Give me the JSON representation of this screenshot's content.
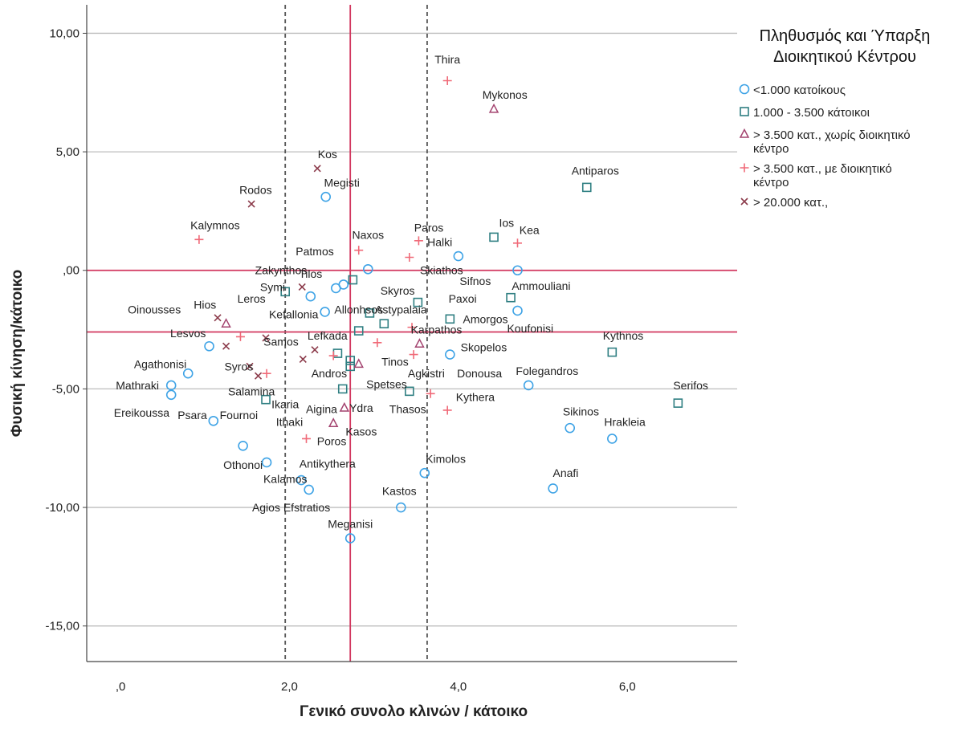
{
  "chart_data": {
    "type": "scatter",
    "xlabel": "Γενικό συνολο κλινών / κάτοικο",
    "ylabel": "Φυσική κίνηση/κάτοικο",
    "xlim": [
      -0.4,
      7.3
    ],
    "ylim": [
      -16.5,
      11.2
    ],
    "x_ticks": [
      {
        "value": 0,
        "label": ",0"
      },
      {
        "value": 2,
        "label": "2,0"
      },
      {
        "value": 4,
        "label": "4,0"
      },
      {
        "value": 6,
        "label": "6,0"
      }
    ],
    "y_ticks": [
      {
        "value": 10,
        "label": "10,00"
      },
      {
        "value": 5,
        "label": "5,00"
      },
      {
        "value": 0,
        "label": ",00"
      },
      {
        "value": -5,
        "label": "-5,00"
      },
      {
        "value": -10,
        "label": "-10,00"
      },
      {
        "value": -15,
        "label": "-15,00"
      }
    ],
    "grid": "horizontal",
    "reference_lines": {
      "vertical": [
        {
          "x": 1.95,
          "style": "dashed",
          "color": "#555555"
        },
        {
          "x": 2.72,
          "style": "solid",
          "color": "#d2385f"
        },
        {
          "x": 3.63,
          "style": "dashed",
          "color": "#555555"
        }
      ],
      "horizontal": [
        {
          "y": 0.0,
          "style": "solid",
          "color": "#d2385f"
        },
        {
          "y": -2.6,
          "style": "solid",
          "color": "#d2385f"
        }
      ]
    },
    "legend": {
      "title_lines": [
        "Πληθυσμός και Ύπαρξη",
        "Διοικητικού Κέντρου"
      ],
      "placement": "top-right",
      "entries": [
        {
          "key": "circle",
          "label_lines": [
            "<1.000 κατοίκους"
          ],
          "color": "#3ea3e6"
        },
        {
          "key": "square",
          "label_lines": [
            "1.000 - 3.500 κάτοικοι"
          ],
          "color": "#2f7f82"
        },
        {
          "key": "triangle",
          "label_lines": [
            "> 3.500 κατ., χωρίς διοικητικό",
            "κέντρο"
          ],
          "color": "#a3436f"
        },
        {
          "key": "plus",
          "label_lines": [
            "> 3.500 κατ., με διοικητικό",
            "κέντρο"
          ],
          "color": "#f06a78"
        },
        {
          "key": "cross",
          "label_lines": [
            "> 20.000 κατ.,"
          ],
          "color": "#8b3a4a"
        }
      ]
    },
    "points": [
      {
        "x": 3.87,
        "y": 8.0,
        "marker": "plus",
        "label": "Thira",
        "lx": 3.87,
        "ly": 8.9
      },
      {
        "x": 4.42,
        "y": 6.8,
        "marker": "triangle",
        "label": "Mykonos",
        "lx": 4.55,
        "ly": 7.4
      },
      {
        "x": 2.33,
        "y": 4.3,
        "marker": "cross",
        "label": "Kos",
        "lx": 2.45,
        "ly": 4.9
      },
      {
        "x": 5.52,
        "y": 3.5,
        "marker": "square",
        "label": "Antiparos",
        "lx": 5.62,
        "ly": 4.2
      },
      {
        "x": 2.43,
        "y": 3.1,
        "marker": "circle",
        "label": "Megisti",
        "lx": 2.62,
        "ly": 3.7
      },
      {
        "x": 1.55,
        "y": 2.8,
        "marker": "cross",
        "label": "Rodos",
        "lx": 1.6,
        "ly": 3.4
      },
      {
        "x": 0.93,
        "y": 1.3,
        "marker": "plus",
        "label": "Kalymnos",
        "lx": 1.12,
        "ly": 1.9
      },
      {
        "x": 4.42,
        "y": 1.4,
        "marker": "square",
        "label": "Ios",
        "lx": 4.57,
        "ly": 2.0
      },
      {
        "x": 4.7,
        "y": 1.15,
        "marker": "plus",
        "label": "Kea",
        "lx": 4.84,
        "ly": 1.7
      },
      {
        "x": 3.53,
        "y": 1.25,
        "marker": "plus",
        "label": "Paros",
        "lx": 3.65,
        "ly": 1.8
      },
      {
        "x": 2.82,
        "y": 0.85,
        "marker": "plus",
        "label": "Naxos",
        "lx": 2.93,
        "ly": 1.5
      },
      {
        "x": 3.42,
        "y": 0.55,
        "marker": "plus",
        "label": "Patmos",
        "lx": 2.3,
        "ly": 0.8
      },
      {
        "x": 4.0,
        "y": 0.6,
        "marker": "circle",
        "label": "Halki",
        "lx": 3.78,
        "ly": 1.2
      },
      {
        "x": 2.93,
        "y": 0.05,
        "marker": "circle",
        "label": "",
        "lx": 0,
        "ly": 0
      },
      {
        "x": 4.7,
        "y": 0.0,
        "marker": "circle",
        "label": "",
        "lx": 0,
        "ly": 0
      },
      {
        "x": 2.75,
        "y": -0.4,
        "marker": "square",
        "label": "Zakynthos",
        "lx": 1.9,
        "ly": 0.0
      },
      {
        "x": 2.64,
        "y": -0.6,
        "marker": "circle",
        "label": "Tilos",
        "lx": 2.25,
        "ly": -0.15
      },
      {
        "x": 2.55,
        "y": -0.75,
        "marker": "circle",
        "label": "",
        "lx": 0,
        "ly": 0
      },
      {
        "x": 2.15,
        "y": -0.7,
        "marker": "cross",
        "label": "",
        "lx": 0,
        "ly": 0
      },
      {
        "x": 1.95,
        "y": -0.9,
        "marker": "square",
        "label": "Symi",
        "lx": 1.8,
        "ly": -0.7
      },
      {
        "x": 2.25,
        "y": -1.1,
        "marker": "circle",
        "label": "",
        "lx": 0,
        "ly": 0
      },
      {
        "x": 3.8,
        "y": 0.0,
        "marker": "none",
        "label": "Skiathos",
        "lx": 3.8,
        "ly": 0.0
      },
      {
        "x": 4.6,
        "y": -0.45,
        "marker": "none",
        "label": "Sifnos",
        "lx": 4.2,
        "ly": -0.45
      },
      {
        "x": 4.62,
        "y": -1.15,
        "marker": "square",
        "label": "Ammouliani",
        "lx": 4.98,
        "ly": -0.65
      },
      {
        "x": 3.52,
        "y": -1.35,
        "marker": "square",
        "label": "Skyros",
        "lx": 3.28,
        "ly": -0.85
      },
      {
        "x": 4.7,
        "y": -1.7,
        "marker": "circle",
        "label": "Paxoi",
        "lx": 4.05,
        "ly": -1.2
      },
      {
        "x": 0.0,
        "y": 0.0,
        "marker": "none",
        "label": "Oinousses",
        "lx": 0.4,
        "ly": -1.65
      },
      {
        "x": 1.15,
        "y": -2.0,
        "marker": "cross",
        "label": "Hios",
        "lx": 1.0,
        "ly": -1.45
      },
      {
        "x": 1.25,
        "y": -2.25,
        "marker": "triangle",
        "label": "Leros",
        "lx": 1.55,
        "ly": -1.2
      },
      {
        "x": 0.0,
        "y": 0.0,
        "marker": "none",
        "label": "Kefallonia",
        "lx": 2.05,
        "ly": -1.85
      },
      {
        "x": 2.42,
        "y": -1.75,
        "marker": "circle",
        "label": "Allonhsos",
        "lx": 2.82,
        "ly": -1.65
      },
      {
        "x": 2.95,
        "y": -1.8,
        "marker": "square",
        "label": "",
        "lx": 0,
        "ly": 0
      },
      {
        "x": 0.0,
        "y": 0.0,
        "marker": "none",
        "label": "Astypalaia",
        "lx": 3.32,
        "ly": -1.65
      },
      {
        "x": 3.12,
        "y": -2.25,
        "marker": "square",
        "label": "",
        "lx": 0,
        "ly": 0
      },
      {
        "x": 3.9,
        "y": -2.05,
        "marker": "square",
        "label": "Amorgos",
        "lx": 4.32,
        "ly": -2.05
      },
      {
        "x": 3.45,
        "y": -2.4,
        "marker": "plus",
        "label": "",
        "lx": 0,
        "ly": 0
      },
      {
        "x": 2.82,
        "y": -2.55,
        "marker": "square",
        "label": "",
        "lx": 0,
        "ly": 0
      },
      {
        "x": 0.0,
        "y": 0.0,
        "marker": "none",
        "label": "Koufonisi",
        "lx": 4.85,
        "ly": -2.45
      },
      {
        "x": 0.0,
        "y": 0.0,
        "marker": "none",
        "label": "Karpathos",
        "lx": 3.74,
        "ly": -2.5
      },
      {
        "x": 5.82,
        "y": -3.45,
        "marker": "square",
        "label": "Kythnos",
        "lx": 5.95,
        "ly": -2.75
      },
      {
        "x": 0.0,
        "y": 0.0,
        "marker": "none",
        "label": "Lesvos",
        "lx": 0.8,
        "ly": -2.65
      },
      {
        "x": 1.42,
        "y": -2.8,
        "marker": "plus",
        "label": "",
        "lx": 0,
        "ly": 0
      },
      {
        "x": 1.72,
        "y": -2.85,
        "marker": "cross",
        "label": "",
        "lx": 0,
        "ly": 0
      },
      {
        "x": 0.0,
        "y": 0.0,
        "marker": "none",
        "label": "Lefkada",
        "lx": 2.45,
        "ly": -2.75
      },
      {
        "x": 1.05,
        "y": -3.2,
        "marker": "circle",
        "label": "",
        "lx": 0,
        "ly": 0
      },
      {
        "x": 1.25,
        "y": -3.2,
        "marker": "cross",
        "label": "",
        "lx": 0,
        "ly": 0
      },
      {
        "x": 0.0,
        "y": 0.0,
        "marker": "none",
        "label": "Samos",
        "lx": 1.9,
        "ly": -3.0
      },
      {
        "x": 2.3,
        "y": -3.35,
        "marker": "cross",
        "label": "",
        "lx": 0,
        "ly": 0
      },
      {
        "x": 2.57,
        "y": -3.5,
        "marker": "square",
        "label": "",
        "lx": 0,
        "ly": 0
      },
      {
        "x": 2.52,
        "y": -3.6,
        "marker": "plus",
        "label": "",
        "lx": 0,
        "ly": 0
      },
      {
        "x": 3.04,
        "y": -3.05,
        "marker": "plus",
        "label": "",
        "lx": 0,
        "ly": 0
      },
      {
        "x": 3.54,
        "y": -3.1,
        "marker": "triangle",
        "label": "",
        "lx": 0,
        "ly": 0
      },
      {
        "x": 3.47,
        "y": -3.55,
        "marker": "plus",
        "label": "",
        "lx": 0,
        "ly": 0
      },
      {
        "x": 3.9,
        "y": -3.55,
        "marker": "circle",
        "label": "Skopelos",
        "lx": 4.3,
        "ly": -3.25
      },
      {
        "x": 0.0,
        "y": 0.0,
        "marker": "none",
        "label": "Tinos",
        "lx": 3.25,
        "ly": -3.85
      },
      {
        "x": 2.16,
        "y": -3.75,
        "marker": "cross",
        "label": "",
        "lx": 0,
        "ly": 0
      },
      {
        "x": 2.72,
        "y": -3.8,
        "marker": "square",
        "label": "",
        "lx": 0,
        "ly": 0
      },
      {
        "x": 2.72,
        "y": -4.05,
        "marker": "square",
        "label": "",
        "lx": 0,
        "ly": 0
      },
      {
        "x": 2.82,
        "y": -3.95,
        "marker": "triangle",
        "label": "",
        "lx": 0,
        "ly": 0
      },
      {
        "x": 0.8,
        "y": -4.35,
        "marker": "circle",
        "label": "Agathonisi",
        "lx": 0.47,
        "ly": -3.95
      },
      {
        "x": 1.53,
        "y": -4.05,
        "marker": "cross",
        "label": "Syros",
        "lx": 1.4,
        "ly": -4.05
      },
      {
        "x": 1.63,
        "y": -4.45,
        "marker": "cross",
        "label": "",
        "lx": 0,
        "ly": 0
      },
      {
        "x": 1.73,
        "y": -4.35,
        "marker": "plus",
        "label": "",
        "lx": 0,
        "ly": 0
      },
      {
        "x": 0.0,
        "y": 0.0,
        "marker": "none",
        "label": "Andros",
        "lx": 2.47,
        "ly": -4.35
      },
      {
        "x": 0.0,
        "y": 0.0,
        "marker": "none",
        "label": "Agkistri",
        "lx": 3.62,
        "ly": -4.35
      },
      {
        "x": 0.0,
        "y": 0.0,
        "marker": "none",
        "label": "Donousa",
        "lx": 4.25,
        "ly": -4.35
      },
      {
        "x": 4.83,
        "y": -4.85,
        "marker": "circle",
        "label": "Folegandros",
        "lx": 5.05,
        "ly": -4.25
      },
      {
        "x": 0.6,
        "y": -4.85,
        "marker": "circle",
        "label": "Mathraki",
        "lx": 0.2,
        "ly": -4.85
      },
      {
        "x": 0.6,
        "y": -5.25,
        "marker": "circle",
        "label": "",
        "lx": 0,
        "ly": 0
      },
      {
        "x": 0.0,
        "y": 0.0,
        "marker": "none",
        "label": "Salamina",
        "lx": 1.55,
        "ly": -5.1
      },
      {
        "x": 2.63,
        "y": -5.0,
        "marker": "square",
        "label": "",
        "lx": 0,
        "ly": 0
      },
      {
        "x": 0.0,
        "y": 0.0,
        "marker": "none",
        "label": "Spetses",
        "lx": 3.15,
        "ly": -4.8
      },
      {
        "x": 3.42,
        "y": -5.1,
        "marker": "square",
        "label": "",
        "lx": 0,
        "ly": 0
      },
      {
        "x": 3.67,
        "y": -5.2,
        "marker": "plus",
        "label": "",
        "lx": 0,
        "ly": 0
      },
      {
        "x": 6.6,
        "y": -5.6,
        "marker": "square",
        "label": "Serifos",
        "lx": 6.75,
        "ly": -4.85
      },
      {
        "x": 1.72,
        "y": -5.45,
        "marker": "square",
        "label": "Ikaria",
        "lx": 1.95,
        "ly": -5.65
      },
      {
        "x": 0.0,
        "y": 0.0,
        "marker": "none",
        "label": "Kythera",
        "lx": 4.2,
        "ly": -5.35
      },
      {
        "x": 0.0,
        "y": 0.0,
        "marker": "none",
        "label": "Thasos",
        "lx": 3.4,
        "ly": -5.85
      },
      {
        "x": 3.87,
        "y": -5.9,
        "marker": "plus",
        "label": "",
        "lx": 0,
        "ly": 0
      },
      {
        "x": 0.0,
        "y": 0.0,
        "marker": "none",
        "label": "Ereikoussa",
        "lx": 0.25,
        "ly": -6.0
      },
      {
        "x": 0.0,
        "y": 0.0,
        "marker": "none",
        "label": "Psara",
        "lx": 0.85,
        "ly": -6.1
      },
      {
        "x": 1.1,
        "y": -6.35,
        "marker": "circle",
        "label": "Fournoi",
        "lx": 1.4,
        "ly": -6.1
      },
      {
        "x": 0.0,
        "y": 0.0,
        "marker": "none",
        "label": "Aigina",
        "lx": 2.38,
        "ly": -5.85
      },
      {
        "x": 2.65,
        "y": -5.8,
        "marker": "triangle",
        "label": "Ydra",
        "lx": 2.85,
        "ly": -5.8
      },
      {
        "x": 0.0,
        "y": 0.0,
        "marker": "none",
        "label": "Ithaki",
        "lx": 2.0,
        "ly": -6.4
      },
      {
        "x": 2.52,
        "y": -6.45,
        "marker": "triangle",
        "label": "Kasos",
        "lx": 2.85,
        "ly": -6.8
      },
      {
        "x": 5.32,
        "y": -6.65,
        "marker": "circle",
        "label": "Sikinos",
        "lx": 5.45,
        "ly": -5.95
      },
      {
        "x": 5.82,
        "y": -7.1,
        "marker": "circle",
        "label": "Hrakleia",
        "lx": 5.97,
        "ly": -6.4
      },
      {
        "x": 2.2,
        "y": -7.1,
        "marker": "plus",
        "label": "Poros",
        "lx": 2.5,
        "ly": -7.2
      },
      {
        "x": 1.45,
        "y": -7.4,
        "marker": "circle",
        "label": "",
        "lx": 0,
        "ly": 0
      },
      {
        "x": 3.6,
        "y": -8.55,
        "marker": "circle",
        "label": "Kimolos",
        "lx": 3.85,
        "ly": -7.95
      },
      {
        "x": 1.73,
        "y": -8.1,
        "marker": "circle",
        "label": "Othonoi",
        "lx": 1.45,
        "ly": -8.2
      },
      {
        "x": 0.0,
        "y": 0.0,
        "marker": "none",
        "label": "Antikythera",
        "lx": 2.45,
        "ly": -8.15
      },
      {
        "x": 2.14,
        "y": -8.85,
        "marker": "circle",
        "label": "Kalamos",
        "lx": 1.95,
        "ly": -8.8
      },
      {
        "x": 2.23,
        "y": -9.25,
        "marker": "circle",
        "label": "",
        "lx": 0,
        "ly": 0
      },
      {
        "x": 5.12,
        "y": -9.2,
        "marker": "circle",
        "label": "Anafi",
        "lx": 5.27,
        "ly": -8.55
      },
      {
        "x": 3.32,
        "y": -10.0,
        "marker": "circle",
        "label": "Kastos",
        "lx": 3.3,
        "ly": -9.3
      },
      {
        "x": 0.0,
        "y": 0.0,
        "marker": "none",
        "label": "Agios Efstratios",
        "lx": 2.02,
        "ly": -10.0
      },
      {
        "x": 2.72,
        "y": -11.3,
        "marker": "circle",
        "label": "Meganisi",
        "lx": 2.72,
        "ly": -10.7
      }
    ]
  }
}
